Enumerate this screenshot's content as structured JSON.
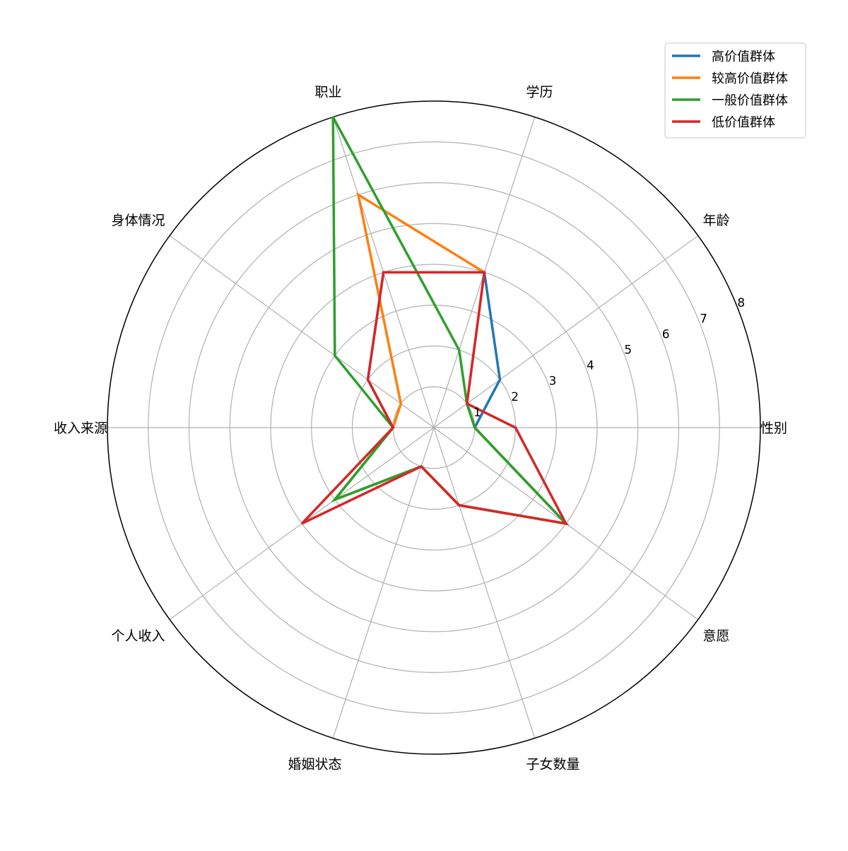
{
  "chart_data": {
    "type": "radar",
    "categories": [
      "性别",
      "年龄",
      "学历",
      "职业",
      "身体情况",
      "收入来源",
      "个人收入",
      "婚姻状态",
      "子女数量",
      "意愿"
    ],
    "rlim": [
      0,
      8
    ],
    "rticks": [
      1,
      2,
      3,
      4,
      5,
      6,
      7,
      8
    ],
    "grid": true,
    "legend_position": "top-right",
    "series": [
      {
        "name": "高价值群体",
        "color": "#1f77b4",
        "values": [
          1,
          2,
          4,
          4,
          2,
          1,
          3,
          1,
          2,
          4
        ]
      },
      {
        "name": "较高价值群体",
        "color": "#ff7f0e",
        "values": [
          1,
          1,
          4,
          6,
          1,
          1,
          3,
          1,
          2,
          4
        ]
      },
      {
        "name": "一般价值群体",
        "color": "#2ca02c",
        "values": [
          1,
          1,
          2,
          8,
          3,
          1,
          3,
          1,
          2,
          4
        ]
      },
      {
        "name": "低价值群体",
        "color": "#d62728",
        "values": [
          2,
          1,
          4,
          4,
          2,
          1,
          4,
          1,
          2,
          4
        ]
      }
    ]
  }
}
